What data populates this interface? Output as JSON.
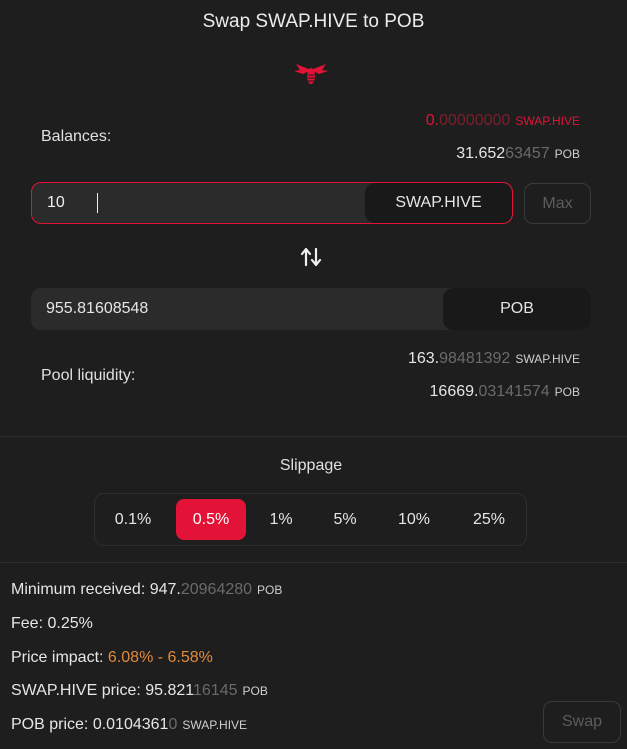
{
  "title": "Swap SWAP.HIVE to POB",
  "icons": {
    "logo": "bee-logo-icon",
    "swap_direction": "swap-arrows-icon"
  },
  "colors": {
    "accent": "#e31337",
    "impact": "#e08a3c"
  },
  "balances": {
    "label": "Balances:",
    "from": {
      "main": "0.",
      "dim": "00000000",
      "unit": "SWAP.HIVE"
    },
    "to": {
      "main": "31.652",
      "dim": "63457",
      "unit": "POB"
    }
  },
  "input": {
    "value": "10",
    "token": "SWAP.HIVE",
    "max_label": "Max"
  },
  "output": {
    "value": "955.81608548",
    "token": "POB"
  },
  "pool": {
    "label": "Pool liquidity:",
    "from": {
      "main": "163.",
      "dim": "98481392",
      "unit": "SWAP.HIVE"
    },
    "to": {
      "main": "16669.",
      "dim": "03141574",
      "unit": "POB"
    }
  },
  "slippage": {
    "title": "Slippage",
    "options": [
      "0.1%",
      "0.5%",
      "1%",
      "5%",
      "10%",
      "25%"
    ],
    "selected": "0.5%"
  },
  "details": {
    "min_received": {
      "label": "Minimum received: ",
      "main": "947.",
      "dim": "20964280",
      "unit": "POB"
    },
    "fee": {
      "label": "Fee: ",
      "value": "0.25%"
    },
    "price_impact": {
      "label": "Price impact: ",
      "value": "6.08% - 6.58%"
    },
    "from_price": {
      "label": "SWAP.HIVE price: ",
      "main": "95.821",
      "dim": "16145",
      "unit": "POB"
    },
    "to_price": {
      "label": "POB price: ",
      "main": "0.0104361",
      "dim": "0",
      "unit": "SWAP.HIVE"
    }
  },
  "swap_label": "Swap"
}
